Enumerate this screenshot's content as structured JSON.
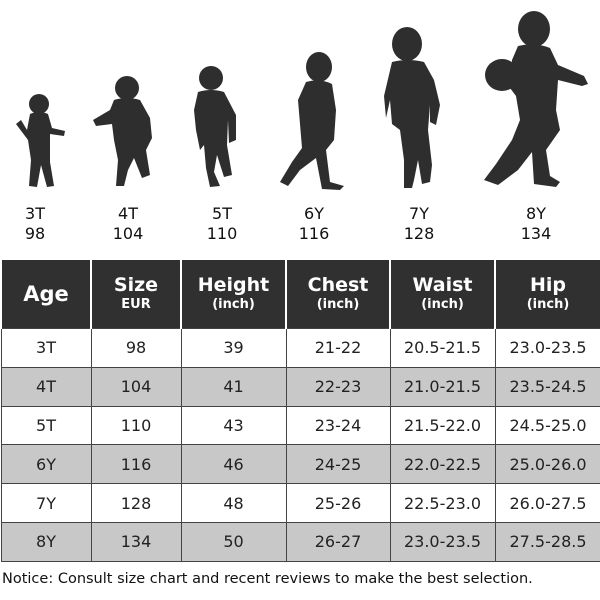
{
  "figures": [
    {
      "age": "3T",
      "size": "98"
    },
    {
      "age": "4T",
      "size": "104"
    },
    {
      "age": "5T",
      "size": "110"
    },
    {
      "age": "6Y",
      "size": "116"
    },
    {
      "age": "7Y",
      "size": "128"
    },
    {
      "age": "8Y",
      "size": "134"
    }
  ],
  "table": {
    "headers": [
      {
        "main": "Age",
        "sub": ""
      },
      {
        "main": "Size",
        "sub": "EUR"
      },
      {
        "main": "Height",
        "sub": "(inch)"
      },
      {
        "main": "Chest",
        "sub": "(inch)"
      },
      {
        "main": "Waist",
        "sub": "(inch)"
      },
      {
        "main": "Hip",
        "sub": "(inch)"
      }
    ],
    "rows": [
      [
        "3T",
        "98",
        "39",
        "21-22",
        "20.5-21.5",
        "23.0-23.5"
      ],
      [
        "4T",
        "104",
        "41",
        "22-23",
        "21.0-21.5",
        "23.5-24.5"
      ],
      [
        "5T",
        "110",
        "43",
        "23-24",
        "21.5-22.0",
        "24.5-25.0"
      ],
      [
        "6Y",
        "116",
        "46",
        "24-25",
        "22.0-22.5",
        "25.0-26.0"
      ],
      [
        "7Y",
        "128",
        "48",
        "25-26",
        "22.5-23.0",
        "26.0-27.5"
      ],
      [
        "8Y",
        "134",
        "50",
        "26-27",
        "23.0-23.5",
        "27.5-28.5"
      ]
    ]
  },
  "notice": "Notice: Consult size chart and recent reviews to make the best selection.",
  "colors": {
    "header_bg": "#303030",
    "alt_row": "#c8c8c8",
    "silhouette": "#2e2e2e"
  }
}
